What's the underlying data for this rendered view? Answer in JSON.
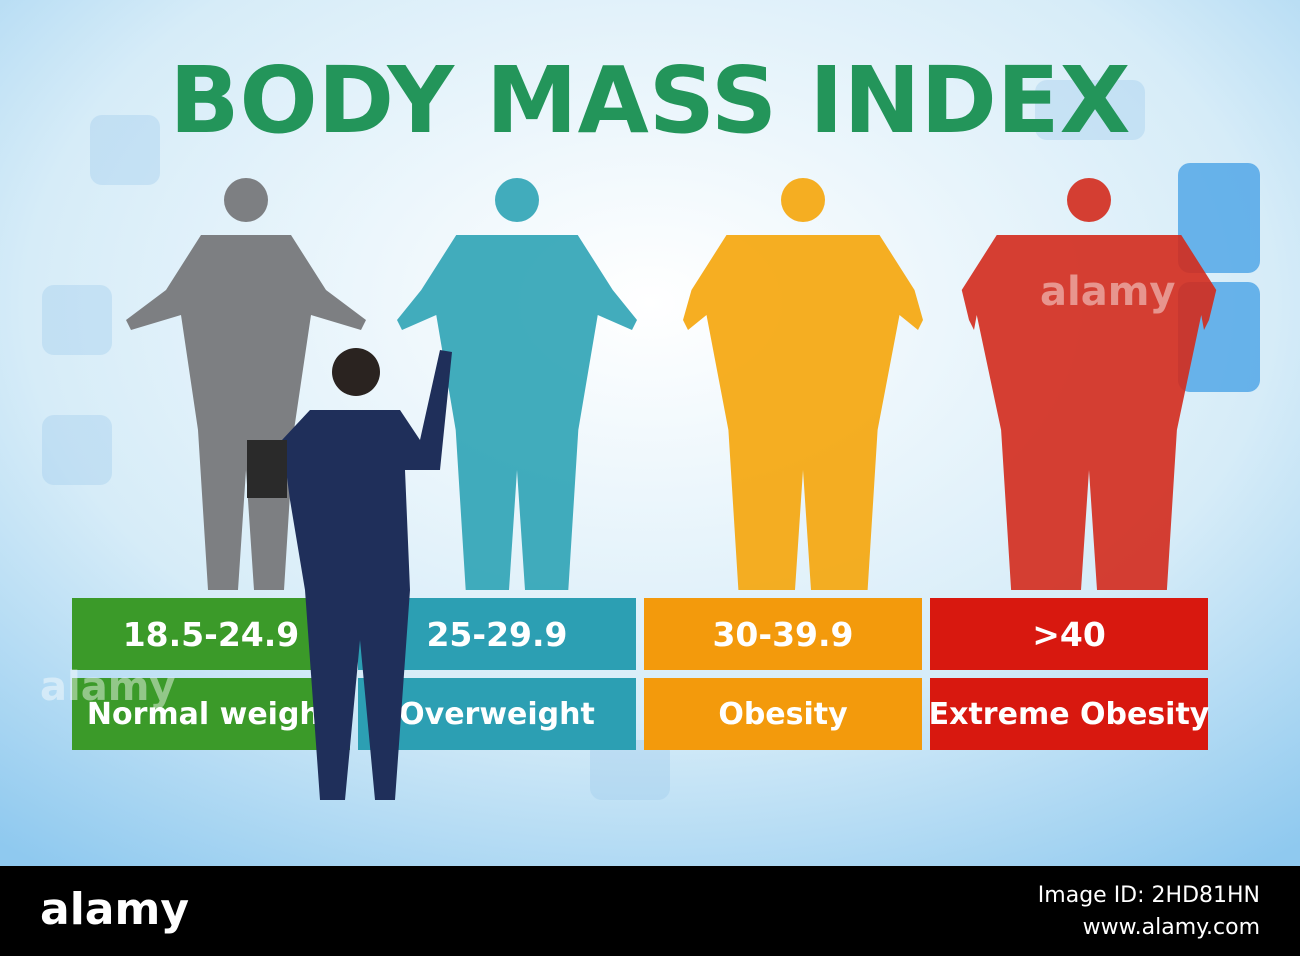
{
  "title": "BODY MASS INDEX",
  "categories": [
    {
      "range": "18.5-24.9",
      "label": "Normal weight",
      "color": "#3b9a29",
      "figure_color": "#7d7f82"
    },
    {
      "range": "25-29.9",
      "label": "Overweight",
      "color": "#2c9fb3",
      "figure_color": "#2ea3b5"
    },
    {
      "range": "30-39.9",
      "label": "Obesity",
      "color": "#f39a0c",
      "figure_color": "#f5a50a"
    },
    {
      "range": ">40",
      "label": "Extreme Obesity",
      "color": "#d8180f",
      "figure_color": "#d32a1c"
    }
  ],
  "watermark": "alamy",
  "footer": {
    "logo": "alamy",
    "image_id": "Image ID: 2HD81HN",
    "website": "www.alamy.com"
  }
}
